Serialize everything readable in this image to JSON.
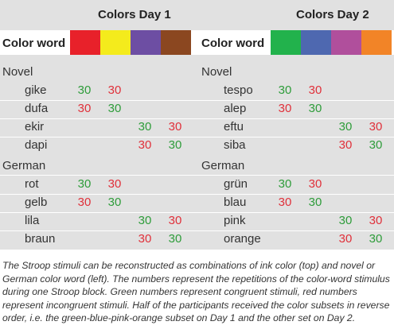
{
  "table": {
    "day1_title": "Colors Day 1",
    "day2_title": "Colors Day 2",
    "color_word_label": "Color word",
    "day1_swatches": [
      "#e8212a",
      "#f4eb1c",
      "#6d4ea3",
      "#8b4720"
    ],
    "day2_swatches": [
      "#22b24c",
      "#4e68b0",
      "#b04f9c",
      "#f28427"
    ],
    "left": {
      "novel_label": "Novel",
      "german_label": "German",
      "novel_words": [
        {
          "word": "gike",
          "c1": "30",
          "c2": "30",
          "c3": "",
          "c4": ""
        },
        {
          "word": "dufa",
          "c1": "30",
          "c2": "30",
          "c3": "",
          "c4": ""
        },
        {
          "word": "ekir",
          "c1": "",
          "c2": "",
          "c3": "30",
          "c4": "30"
        },
        {
          "word": "dapi",
          "c1": "",
          "c2": "",
          "c3": "30",
          "c4": "30"
        }
      ],
      "german_words": [
        {
          "word": "rot",
          "c1": "30",
          "c2": "30",
          "c3": "",
          "c4": ""
        },
        {
          "word": "gelb",
          "c1": "30",
          "c2": "30",
          "c3": "",
          "c4": ""
        },
        {
          "word": "lila",
          "c1": "",
          "c2": "",
          "c3": "30",
          "c4": "30"
        },
        {
          "word": "braun",
          "c1": "",
          "c2": "",
          "c3": "30",
          "c4": "30"
        }
      ]
    },
    "right": {
      "novel_label": "Novel",
      "german_label": "German",
      "novel_words": [
        {
          "word": "tespo",
          "c1": "30",
          "c2": "30",
          "c3": "",
          "c4": ""
        },
        {
          "word": "alep",
          "c1": "30",
          "c2": "30",
          "c3": "",
          "c4": ""
        },
        {
          "word": "eftu",
          "c1": "",
          "c2": "",
          "c3": "30",
          "c4": "30"
        },
        {
          "word": "siba",
          "c1": "",
          "c2": "",
          "c3": "30",
          "c4": "30"
        }
      ],
      "german_words": [
        {
          "word": "grün",
          "c1": "30",
          "c2": "30",
          "c3": "",
          "c4": ""
        },
        {
          "word": "blau",
          "c1": "30",
          "c2": "30",
          "c3": "",
          "c4": ""
        },
        {
          "word": "pink",
          "c1": "",
          "c2": "",
          "c3": "30",
          "c4": "30"
        },
        {
          "word": "orange",
          "c1": "",
          "c2": "",
          "c3": "30",
          "c4": "30"
        }
      ]
    },
    "number_colors": {
      "congruent": "#2e9c3a",
      "incongruent": "#e0303a"
    }
  },
  "caption": "The Stroop stimuli can be reconstructed as combinations of ink color (top) and novel or German color word (left). The numbers represent the repetitions of the color-word stimulus during one Stroop block. Green numbers represent congruent stimuli, red numbers represent incongruent stimuli. Half of the participants received the color subsets in reverse order, i.e. the green-blue-pink-orange subset on Day 1 and the other set on Day 2."
}
